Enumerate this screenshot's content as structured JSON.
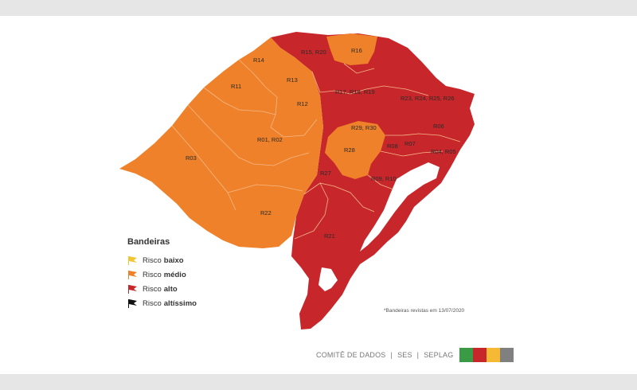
{
  "colors": {
    "risco_baixo": "#f2c532",
    "risco_medio": "#ee8129",
    "risco_alto": "#c7272b",
    "risco_altissimo": "#111111",
    "border": "#f6b98a",
    "footer_swatches": [
      "#3b9a45",
      "#c7272b",
      "#f5b933",
      "#808080"
    ]
  },
  "map": {
    "regions": [
      {
        "label": "R14",
        "risk": "medio"
      },
      {
        "label": "R11",
        "risk": "medio"
      },
      {
        "label": "R13",
        "risk": "medio"
      },
      {
        "label": "R12",
        "risk": "medio"
      },
      {
        "label": "R01, R02",
        "risk": "medio"
      },
      {
        "label": "R03",
        "risk": "medio"
      },
      {
        "label": "R22",
        "risk": "medio"
      },
      {
        "label": "R16",
        "risk": "medio"
      },
      {
        "label": "R29, R30",
        "risk": "medio"
      },
      {
        "label": "R28",
        "risk": "medio"
      },
      {
        "label": "R15, R20",
        "risk": "alto"
      },
      {
        "label": "R17, R18, R19",
        "risk": "alto"
      },
      {
        "label": "R23, R24, R25, R26",
        "risk": "alto"
      },
      {
        "label": "R06",
        "risk": "alto"
      },
      {
        "label": "R08",
        "risk": "alto"
      },
      {
        "label": "R07",
        "risk": "alto"
      },
      {
        "label": "R04, R05",
        "risk": "alto"
      },
      {
        "label": "R27",
        "risk": "alto"
      },
      {
        "label": "R09, R10",
        "risk": "alto"
      },
      {
        "label": "R21",
        "risk": "alto"
      }
    ]
  },
  "legend": {
    "title": "Bandeiras",
    "items": [
      {
        "prefix": "Risco",
        "level": "baixo",
        "color": "#f2c532"
      },
      {
        "prefix": "Risco",
        "level": "médio",
        "color": "#ee8129"
      },
      {
        "prefix": "Risco",
        "level": "alto",
        "color": "#c7272b"
      },
      {
        "prefix": "Risco",
        "level": "altíssimo",
        "color": "#111111"
      }
    ]
  },
  "note": "*Bandeiras revistas em 13/07/2020",
  "footer": {
    "parts": [
      "COMITÊ DE DADOS",
      "SES",
      "SEPLAG"
    ],
    "separator": "|"
  }
}
